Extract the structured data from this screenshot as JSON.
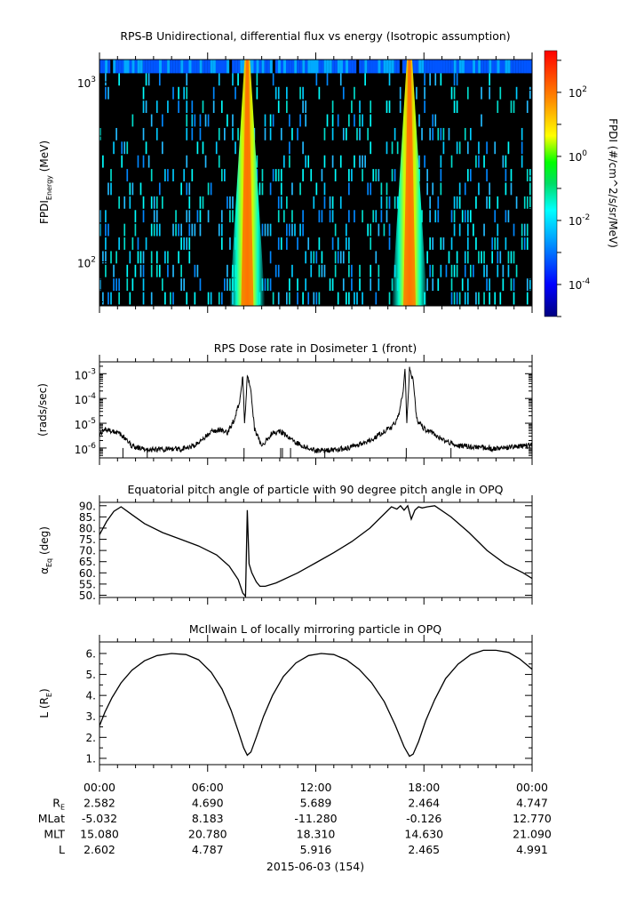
{
  "chart_data": [
    {
      "id": "spectrogram",
      "type": "heatmap",
      "title": "RPS-B  Unidirectional, differential flux vs energy (Isotropic assumption)",
      "ylabel_main": "FPDI",
      "ylabel_sub": "Energy",
      "ylabel_unit": " (MeV)",
      "yscale": "log",
      "ylim": [
        57,
        1330
      ],
      "yticks": [
        {
          "value": 100,
          "base": "10",
          "exp": "2"
        },
        {
          "value": 1000,
          "base": "10",
          "exp": "3"
        }
      ],
      "colorbar": {
        "label": "FPDI (#/cm^2/s/sr/MeV)",
        "scale": "log",
        "range": [
          1e-05,
          2000
        ],
        "ticks": [
          {
            "value": 0.0001,
            "base": "10",
            "exp": "-4"
          },
          {
            "value": 0.01,
            "base": "10",
            "exp": "-2"
          },
          {
            "value": 1,
            "base": "10",
            "exp": "0"
          },
          {
            "value": 100,
            "base": "10",
            "exp": "2"
          }
        ]
      },
      "bright_bands_hours": [
        8.2,
        17.2
      ]
    },
    {
      "id": "dose",
      "type": "line",
      "title": "RPS  Dose rate in Dosimeter 1 (front)",
      "ylabel": "(rads/sec)",
      "yscale": "log",
      "ylim": [
        4e-07,
        0.003
      ],
      "yticks": [
        {
          "value": 1e-06,
          "base": "10",
          "exp": "-6"
        },
        {
          "value": 1e-05,
          "base": "10",
          "exp": "-5"
        },
        {
          "value": 0.0001,
          "base": "10",
          "exp": "-4"
        },
        {
          "value": 0.001,
          "base": "10",
          "exp": "-3"
        }
      ],
      "x_hours": [
        0,
        0.3,
        0.5,
        0.8,
        1.2,
        1.8,
        2.5,
        3.5,
        4.5,
        5.2,
        5.8,
        6.3,
        6.8,
        7.1,
        7.5,
        7.8,
        7.95,
        8.05,
        8.2,
        8.35,
        8.6,
        9.0,
        9.5,
        10.0,
        11.0,
        12.0,
        13.0,
        14.0,
        14.8,
        15.4,
        15.9,
        16.2,
        16.6,
        16.85,
        16.95,
        17.05,
        17.2,
        17.4,
        17.6,
        18.0,
        18.5,
        19.0,
        20.0,
        21.0,
        22.0,
        23.0,
        24.0
      ],
      "y_values": [
        3.3e-06,
        5.5e-06,
        5e-06,
        4.8e-06,
        3.5e-06,
        1.2e-06,
        8.5e-07,
        9e-07,
        9e-07,
        1.2e-06,
        2.5e-06,
        5e-06,
        5.5e-06,
        4e-06,
        1.5e-05,
        9e-05,
        0.0008,
        1e-05,
        0.0008,
        0.0004,
        6e-06,
        1.2e-06,
        3.5e-06,
        5e-06,
        1.5e-06,
        8e-07,
        8e-07,
        1.1e-06,
        1.8e-06,
        3e-06,
        5.5e-06,
        6e-06,
        2e-05,
        0.0002,
        0.0015,
        1e-05,
        0.0015,
        0.0005,
        1.5e-05,
        6e-06,
        4e-06,
        2.2e-06,
        1.2e-06,
        1.1e-06,
        9e-07,
        1.1e-06,
        1.3e-06
      ]
    },
    {
      "id": "pitch",
      "type": "line",
      "title": "Equatorial pitch angle of particle with 90 degree pitch angle in OPQ",
      "ylabel_main": "α",
      "ylabel_sub": "Eq",
      "ylabel_unit": " (deg)",
      "ylim": [
        49,
        91.5
      ],
      "yticks": [
        50,
        55,
        60,
        65,
        70,
        75,
        80,
        85,
        90
      ],
      "ytick_labels": [
        "50.",
        "55.",
        "60.",
        "65.",
        "70.",
        "75.",
        "80.",
        "85.",
        "90."
      ],
      "x_hours": [
        0,
        0.4,
        0.8,
        1.2,
        1.8,
        2.5,
        3.5,
        4.5,
        5.5,
        6.5,
        7.2,
        7.7,
        7.95,
        8.1,
        8.2,
        8.3,
        8.45,
        8.7,
        8.9,
        9.2,
        9.8,
        11,
        12,
        13,
        14,
        15,
        16.2,
        16.5,
        16.7,
        16.9,
        17.1,
        17.3,
        17.5,
        17.7,
        17.9,
        18.2,
        18.6,
        19.5,
        20.5,
        21.5,
        22.5,
        23.5,
        24
      ],
      "y_values": [
        77,
        83,
        87.5,
        89.5,
        86,
        82,
        78,
        75,
        72,
        68,
        63,
        57,
        51,
        49.5,
        88,
        64,
        60,
        56,
        54,
        54,
        55.5,
        60,
        64.5,
        69,
        74,
        80,
        89.5,
        88.5,
        90,
        88,
        90,
        84,
        88,
        89.5,
        89,
        89.5,
        90,
        85,
        78,
        70,
        64,
        60,
        57.5
      ]
    },
    {
      "id": "mcilwain",
      "type": "line",
      "title": "McIlwain L of locally mirroring particle in OPQ",
      "ylabel_main": "L (R",
      "ylabel_sub": "E",
      "ylabel_unit": ")",
      "ylim": [
        0.7,
        6.55
      ],
      "yticks": [
        1,
        2,
        3,
        4,
        5,
        6
      ],
      "ytick_labels": [
        "1.",
        "2.",
        "3.",
        "4.",
        "5.",
        "6."
      ],
      "x_hours": [
        0,
        0.3,
        0.7,
        1.2,
        1.8,
        2.5,
        3.2,
        4.0,
        4.8,
        5.5,
        6.2,
        6.8,
        7.3,
        7.7,
        8.0,
        8.2,
        8.4,
        8.7,
        9.1,
        9.6,
        10.2,
        10.9,
        11.6,
        12.3,
        13.0,
        13.7,
        14.4,
        15.1,
        15.8,
        16.4,
        16.9,
        17.2,
        17.4,
        17.7,
        18.1,
        18.6,
        19.2,
        19.9,
        20.6,
        21.3,
        22.0,
        22.7,
        23.3,
        24.0
      ],
      "y_values": [
        2.55,
        3.2,
        3.9,
        4.6,
        5.2,
        5.65,
        5.9,
        6.0,
        5.95,
        5.7,
        5.1,
        4.3,
        3.3,
        2.3,
        1.5,
        1.15,
        1.3,
        2.0,
        3.0,
        4.0,
        4.9,
        5.55,
        5.9,
        6.0,
        5.95,
        5.7,
        5.25,
        4.6,
        3.7,
        2.6,
        1.55,
        1.1,
        1.2,
        1.8,
        2.8,
        3.8,
        4.8,
        5.5,
        5.95,
        6.15,
        6.15,
        6.05,
        5.75,
        5.25
      ]
    }
  ],
  "xaxis": {
    "ticks": [
      "00:00",
      "06:00",
      "12:00",
      "18:00",
      "00:00"
    ],
    "rows": [
      {
        "label_main": "R",
        "label_sub": "E",
        "values": [
          "2.582",
          "4.690",
          "5.689",
          "2.464",
          "4.747"
        ]
      },
      {
        "label_main": "MLat",
        "label_sub": "",
        "values": [
          "-5.032",
          "8.183",
          "-11.280",
          "-0.126",
          "12.770"
        ]
      },
      {
        "label_main": "MLT",
        "label_sub": "",
        "values": [
          "15.080",
          "20.780",
          "18.310",
          "14.630",
          "21.090"
        ]
      },
      {
        "label_main": "L",
        "label_sub": "",
        "values": [
          "2.602",
          "4.787",
          "5.916",
          "2.465",
          "4.991"
        ]
      }
    ],
    "date_label": "2015-06-03 (154)"
  }
}
